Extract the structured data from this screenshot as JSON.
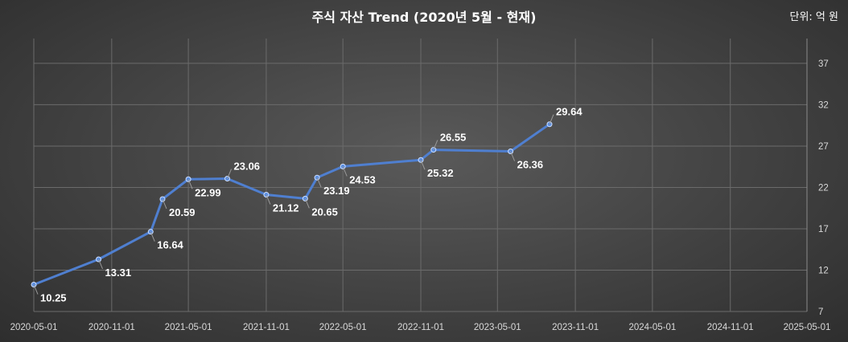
{
  "unit_label": "단위: 억 원",
  "chart_data": {
    "type": "line",
    "title": "주식 자산 Trend (2020년 5월 - 현재)",
    "xlabel": "",
    "ylabel": "",
    "x_ticks": [
      "2020-05-01",
      "2020-11-01",
      "2021-05-01",
      "2021-11-01",
      "2022-05-01",
      "2022-11-01",
      "2023-05-01",
      "2023-11-01",
      "2024-05-01",
      "2024-11-01",
      "2025-05-01"
    ],
    "x_range": [
      "2020-05-01",
      "2025-05-01"
    ],
    "y_ticks": [
      7,
      12,
      17,
      22,
      27,
      32,
      37
    ],
    "ylim": [
      7,
      40
    ],
    "y_axis_position": "right",
    "grid": true,
    "line_color": "#4f7fd0",
    "series": [
      {
        "points": [
          {
            "x": "2020-05-01",
            "y": 10.25
          },
          {
            "x": "2020-10-01",
            "y": 13.31
          },
          {
            "x": "2021-02-01",
            "y": 16.64
          },
          {
            "x": "2021-03-01",
            "y": 20.59
          },
          {
            "x": "2021-05-01",
            "y": 22.99
          },
          {
            "x": "2021-08-01",
            "y": 23.06
          },
          {
            "x": "2021-11-01",
            "y": 21.12
          },
          {
            "x": "2022-02-01",
            "y": 20.65
          },
          {
            "x": "2022-03-01",
            "y": 23.19
          },
          {
            "x": "2022-05-01",
            "y": 24.53
          },
          {
            "x": "2022-11-01",
            "y": 25.32
          },
          {
            "x": "2022-12-01",
            "y": 26.55
          },
          {
            "x": "2023-06-01",
            "y": 26.36
          },
          {
            "x": "2023-09-01",
            "y": 29.64
          }
        ]
      }
    ]
  }
}
